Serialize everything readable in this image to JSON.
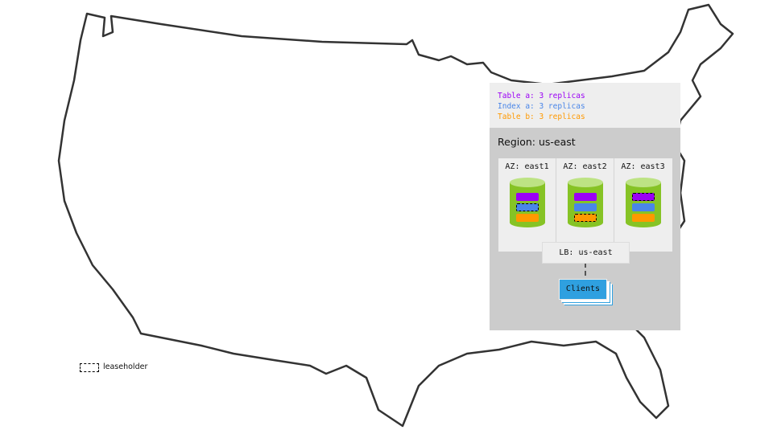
{
  "legend": [
    {
      "text": "Table a: 3 replicas",
      "color": "#9b00f5"
    },
    {
      "text": "Index a: 3 replicas",
      "color": "#4a86e8"
    },
    {
      "text": "Table b: 3 replicas",
      "color": "#ff9900"
    }
  ],
  "region": "Region: us-east",
  "zones": [
    {
      "label": "AZ: east1",
      "leaseholder": "index-a"
    },
    {
      "label": "AZ: east2",
      "leaseholder": "table-b"
    },
    {
      "label": "AZ: east3",
      "leaseholder": "table-a"
    }
  ],
  "colors": {
    "table_a": "#9b00f5",
    "index_a": "#4a86e8",
    "table_b": "#ff9900",
    "node": "#86c325",
    "clients": "#2fa0e0"
  },
  "lb": "LB: us-east",
  "clients": "Clients",
  "leaseholder_key": "leaseholder"
}
